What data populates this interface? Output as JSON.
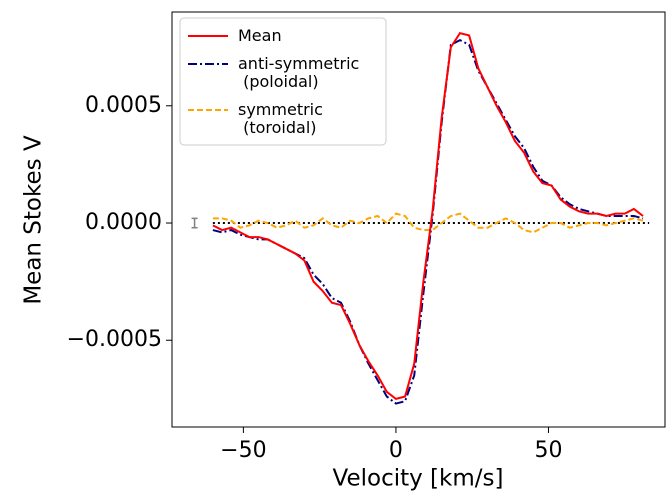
{
  "chart_data": {
    "type": "line",
    "xlabel": "Velocity [km/s]",
    "ylabel": "Mean Stokes V",
    "x": [
      -60,
      -57,
      -54,
      -51,
      -48,
      -45,
      -42,
      -39,
      -36,
      -33,
      -30,
      -27,
      -24,
      -21,
      -18,
      -15,
      -12,
      -9,
      -6,
      -3,
      0,
      3,
      6,
      9,
      12,
      15,
      18,
      21,
      24,
      27,
      30,
      33,
      36,
      39,
      42,
      45,
      48,
      51,
      54,
      57,
      60,
      63,
      66,
      69,
      72,
      75,
      78,
      81
    ],
    "series": [
      {
        "name": "Mean",
        "color": "#ff0000",
        "style": "solid",
        "values": [
          -1e-05,
          -3e-05,
          -2e-05,
          -4e-05,
          -6e-05,
          -6e-05,
          -7e-05,
          -9e-05,
          -0.00011,
          -0.00013,
          -0.00016,
          -0.00025,
          -0.00029,
          -0.00034,
          -0.00035,
          -0.00043,
          -0.00052,
          -0.00059,
          -0.00065,
          -0.00072,
          -0.00075,
          -0.00074,
          -0.0006,
          -0.00025,
          5e-05,
          0.00045,
          0.00075,
          0.00081,
          0.0008,
          0.00066,
          0.00058,
          0.0005,
          0.00043,
          0.00035,
          0.0003,
          0.00022,
          0.00017,
          0.00016,
          0.0001,
          7e-05,
          5e-05,
          4e-05,
          4e-05,
          3e-05,
          4e-05,
          4e-05,
          6e-05,
          3e-05
        ]
      },
      {
        "name": "anti-symmetric\n (poloidal)",
        "color": "#000080",
        "style": "dashdot",
        "values": [
          -3e-05,
          -4e-05,
          -3e-05,
          -5e-05,
          -6e-05,
          -7e-05,
          -7e-05,
          -9e-05,
          -0.00011,
          -0.00013,
          -0.00015,
          -0.00022,
          -0.00026,
          -0.00032,
          -0.00034,
          -0.00042,
          -0.00052,
          -0.0006,
          -0.00067,
          -0.00074,
          -0.00077,
          -0.00076,
          -0.00065,
          -0.0003,
          3e-05,
          0.00043,
          0.00076,
          0.00078,
          0.00076,
          0.00065,
          0.00058,
          0.00051,
          0.00044,
          0.00037,
          0.00032,
          0.00024,
          0.00018,
          0.00016,
          0.00011,
          8e-05,
          6e-05,
          5e-05,
          4e-05,
          3e-05,
          3e-05,
          3e-05,
          3e-05,
          2e-05
        ]
      },
      {
        "name": "symmetric\n (toroidal)",
        "color": "#ffa500",
        "style": "dashed",
        "values": [
          2e-05,
          2e-05,
          1e-05,
          -2e-05,
          -1e-05,
          1e-05,
          0.0,
          -2e-05,
          -1e-05,
          1e-05,
          -2e-05,
          -1e-05,
          2e-05,
          -1e-05,
          -2e-05,
          1e-05,
          0.0,
          2e-05,
          3e-05,
          0.0,
          4e-05,
          3e-05,
          -2e-05,
          -3e-05,
          -3e-05,
          0.0,
          3e-05,
          4e-05,
          1e-05,
          -2e-05,
          -2e-05,
          0.0,
          2e-05,
          0.0,
          -3e-05,
          -4e-05,
          -2e-05,
          0.0,
          0.0,
          -2e-05,
          -1e-05,
          0.0,
          0.0,
          -1e-05,
          0.0,
          1e-05,
          2e-05,
          1e-05
        ]
      }
    ],
    "reference_line": {
      "y": 0,
      "from": -60,
      "to": 83,
      "color": "#000000"
    },
    "error_bar": {
      "x": -66,
      "y": 0,
      "error": 2e-05,
      "color": "#808080"
    },
    "xlim": [
      -73.4,
      88.2
    ],
    "ylim": [
      -0.00087,
      0.0009
    ],
    "xticks": [
      {
        "value": -50,
        "label": "−50"
      },
      0,
      50
    ],
    "yticks": [
      {
        "value": -0.0005,
        "label": "−0.0005"
      },
      {
        "value": 0,
        "label": "0.0000"
      },
      {
        "value": 0.0005,
        "label": "0.0005"
      }
    ],
    "legend": "upper left",
    "grid": false
  }
}
